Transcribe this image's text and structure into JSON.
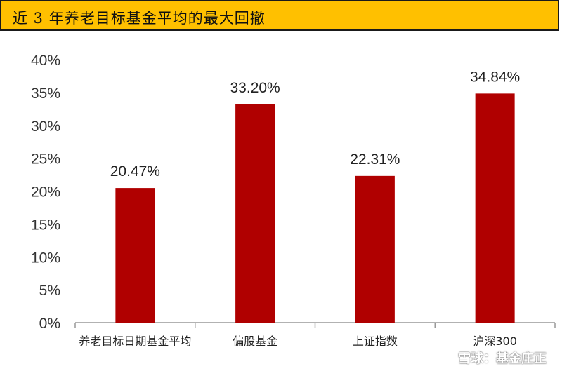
{
  "header": {
    "title": "近 3 年养老目标基金平均的最大回撤"
  },
  "watermark": {
    "text": "雪球：基金庄正"
  },
  "chart_data": {
    "type": "bar",
    "title": "近 3 年养老目标基金平均的最大回撤",
    "categories": [
      "养老目标日期基金平均",
      "偏股基金",
      "上证指数",
      "沪深300"
    ],
    "values": [
      20.47,
      33.2,
      22.31,
      34.84
    ],
    "value_labels": [
      "20.47%",
      "33.20%",
      "22.31%",
      "34.84%"
    ],
    "y_tick_labels": [
      "0%",
      "5%",
      "10%",
      "15%",
      "20%",
      "25%",
      "30%",
      "35%",
      "40%"
    ],
    "y_ticks": [
      0,
      5,
      10,
      15,
      20,
      25,
      30,
      35,
      40
    ],
    "ylim": [
      0,
      40
    ],
    "xlabel": "",
    "ylabel": "",
    "grid": false,
    "bar_color": "#b00000"
  }
}
